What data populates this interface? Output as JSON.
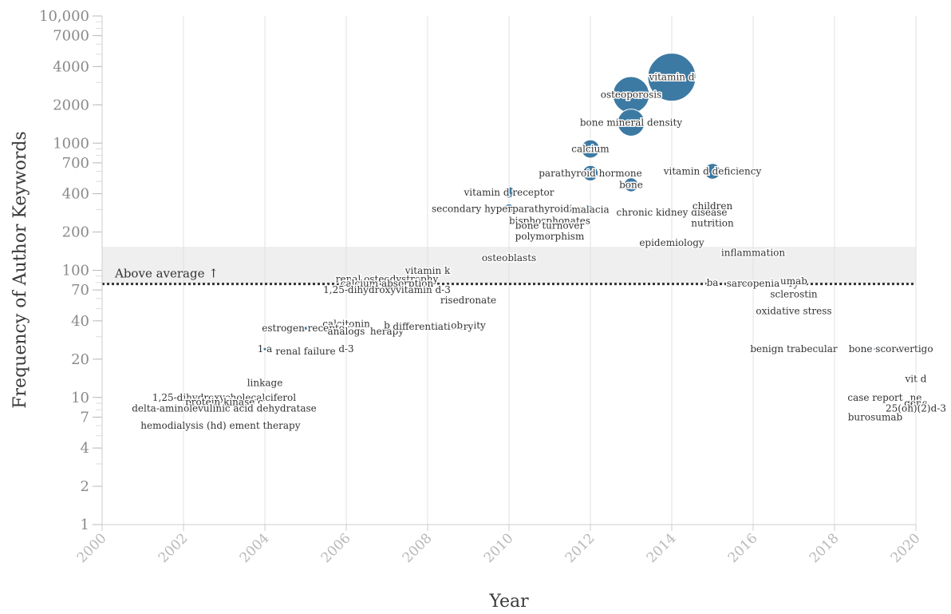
{
  "chart_data": {
    "type": "scatter",
    "x_label": "Year",
    "y_label": "Frequency of Author Keywords",
    "x_range": [
      2000,
      2020
    ],
    "y_range": [
      1,
      10000
    ],
    "y_scale": "log",
    "x_ticks": [
      "2000",
      "2002",
      "2004",
      "2006",
      "2008",
      "2010",
      "2012",
      "2014",
      "2016",
      "2018",
      "2020"
    ],
    "y_ticks": [
      {
        "value": 1,
        "label": "1"
      },
      {
        "value": 2,
        "label": "2"
      },
      {
        "value": 4,
        "label": "4"
      },
      {
        "value": 7,
        "label": "7"
      },
      {
        "value": 10,
        "label": "10"
      },
      {
        "value": 20,
        "label": "20"
      },
      {
        "value": 40,
        "label": "40"
      },
      {
        "value": 70,
        "label": "70"
      },
      {
        "value": 100,
        "label": "100"
      },
      {
        "value": 200,
        "label": "200"
      },
      {
        "value": 400,
        "label": "400"
      },
      {
        "value": 700,
        "label": "700"
      },
      {
        "value": 1000,
        "label": "1000"
      },
      {
        "value": 2000,
        "label": "2000"
      },
      {
        "value": 4000,
        "label": "4000"
      },
      {
        "value": 7000,
        "label": "7000"
      },
      {
        "value": 10000,
        "label": "10,000"
      }
    ],
    "grid": "vertical",
    "bubble_color": "#3d7aa3",
    "band_color": "#efefef",
    "reference": {
      "value": 78,
      "label": "Above average ↑",
      "band_top": 153
    },
    "points": [
      {
        "keyword": "vitamin d",
        "year": 2014,
        "freq": 3300,
        "size": 3300
      },
      {
        "keyword": "osteoporosis",
        "year": 2013,
        "freq": 2400,
        "size": 1900
      },
      {
        "keyword": "bone mineral density",
        "year": 2013,
        "freq": 1450,
        "size": 1050
      },
      {
        "keyword": "calcium",
        "year": 2012,
        "freq": 900,
        "size": 480
      },
      {
        "keyword": "parathyroid hormone",
        "year": 2012,
        "freq": 580,
        "size": 340
      },
      {
        "keyword": "bone",
        "year": 2013,
        "freq": 470,
        "size": 280
      },
      {
        "keyword": "vitamin d deficiency",
        "year": 2015,
        "freq": 600,
        "size": 350
      },
      {
        "keyword": "vitamin d receptor",
        "year": 2010,
        "freq": 410,
        "size": 180
      },
      {
        "keyword": "secondary hyperparathyroidism",
        "year": 2010,
        "freq": 305,
        "size": 130
      },
      {
        "keyword": "malacia",
        "year": 2012,
        "freq": 300,
        "size": 100
      },
      {
        "keyword": "chronic kidney disease",
        "year": 2014,
        "freq": 285,
        "size": 90
      },
      {
        "keyword": "children",
        "year": 2015,
        "freq": 320,
        "size": 70
      },
      {
        "keyword": "nutrition",
        "year": 2015,
        "freq": 235,
        "size": 60
      },
      {
        "keyword": "bisphosphonates",
        "year": 2011,
        "freq": 245,
        "size": 70
      },
      {
        "keyword": "bone turnover",
        "year": 2011,
        "freq": 225,
        "size": 60
      },
      {
        "keyword": "polymorphism",
        "year": 2011,
        "freq": 185,
        "size": 60
      },
      {
        "keyword": "epidemiology",
        "year": 2014,
        "freq": 165,
        "size": 70
      },
      {
        "keyword": "osteoblasts",
        "year": 2010,
        "freq": 125,
        "size": 50
      },
      {
        "keyword": "inflammation",
        "year": 2016,
        "freq": 137,
        "size": 50
      },
      {
        "keyword": "vitamin k",
        "year": 2008,
        "freq": 99,
        "size": 30
      },
      {
        "keyword": "renal osteodystrophy",
        "year": 2007,
        "freq": 85,
        "size": 30
      },
      {
        "keyword": "calcium absorption",
        "year": 2007,
        "freq": 79,
        "size": 30
      },
      {
        "keyword": "1,25-dihydroxyvitamin d-3",
        "year": 2007,
        "freq": 70,
        "size": 30
      },
      {
        "keyword": "risedronate",
        "year": 2009,
        "freq": 58,
        "size": 25
      },
      {
        "keyword": "ba",
        "year": 2015,
        "freq": 80,
        "size": 25
      },
      {
        "keyword": "sarcopenia",
        "year": 2016,
        "freq": 79,
        "size": 25
      },
      {
        "keyword": "ry",
        "year": 2017,
        "freq": 79,
        "size": 25
      },
      {
        "keyword": "umab",
        "year": 2017,
        "freq": 82,
        "size": 25
      },
      {
        "keyword": "sclerostin",
        "year": 2017,
        "freq": 65,
        "size": 25
      },
      {
        "keyword": "oxidative stress",
        "year": 2017,
        "freq": 48,
        "size": 25
      },
      {
        "keyword": "calcitonin",
        "year": 2006,
        "freq": 38,
        "size": 20
      },
      {
        "keyword": "estrogen receptor",
        "year": 2005,
        "freq": 35,
        "size": 20
      },
      {
        "keyword": "analogs",
        "year": 2006,
        "freq": 33,
        "size": 20
      },
      {
        "keyword": "herapy",
        "year": 2007,
        "freq": 33,
        "size": 20
      },
      {
        "keyword": "b",
        "year": 2007,
        "freq": 37,
        "size": 20
      },
      {
        "keyword": "differentiation",
        "year": 2008,
        "freq": 36,
        "size": 20
      },
      {
        "keyword": "obesity",
        "year": 2009,
        "freq": 37,
        "size": 20
      },
      {
        "keyword": "ry",
        "year": 2009,
        "freq": 36,
        "size": 20
      },
      {
        "keyword": "1 a",
        "year": 2004,
        "freq": 24,
        "size": 15
      },
      {
        "keyword": "renal failure",
        "year": 2005,
        "freq": 23,
        "size": 15
      },
      {
        "keyword": "d-3",
        "year": 2006,
        "freq": 24,
        "size": 15
      },
      {
        "keyword": "benign trabecular",
        "year": 2017,
        "freq": 24,
        "size": 15
      },
      {
        "keyword": "bone score",
        "year": 2019,
        "freq": 24,
        "size": 15
      },
      {
        "keyword": "vertigo",
        "year": 2020,
        "freq": 24,
        "size": 15
      },
      {
        "keyword": "linkage",
        "year": 2004,
        "freq": 13,
        "size": 10
      },
      {
        "keyword": "1,25-dihydroxycholecalciferol",
        "year": 2003,
        "freq": 10,
        "size": 10
      },
      {
        "keyword": "protein kinase c",
        "year": 2003,
        "freq": 9.2,
        "size": 10
      },
      {
        "keyword": "delta-aminolevulinic acid dehydratase",
        "year": 2003,
        "freq": 8.2,
        "size": 10
      },
      {
        "keyword": "hemodialysis (hd)",
        "year": 2002,
        "freq": 6,
        "size": 10
      },
      {
        "keyword": "ement therapy",
        "year": 2004,
        "freq": 6,
        "size": 10
      },
      {
        "keyword": "vit d",
        "year": 2020,
        "freq": 14,
        "size": 10
      },
      {
        "keyword": "case report",
        "year": 2019,
        "freq": 10,
        "size": 10
      },
      {
        "keyword": "ne",
        "year": 2020,
        "freq": 10,
        "size": 10
      },
      {
        "keyword": "gene",
        "year": 2020,
        "freq": 9,
        "size": 10
      },
      {
        "keyword": "25(oh)(2)d-3",
        "year": 2020,
        "freq": 8.2,
        "size": 10
      },
      {
        "keyword": "burosumab",
        "year": 2019,
        "freq": 7,
        "size": 10
      }
    ]
  }
}
